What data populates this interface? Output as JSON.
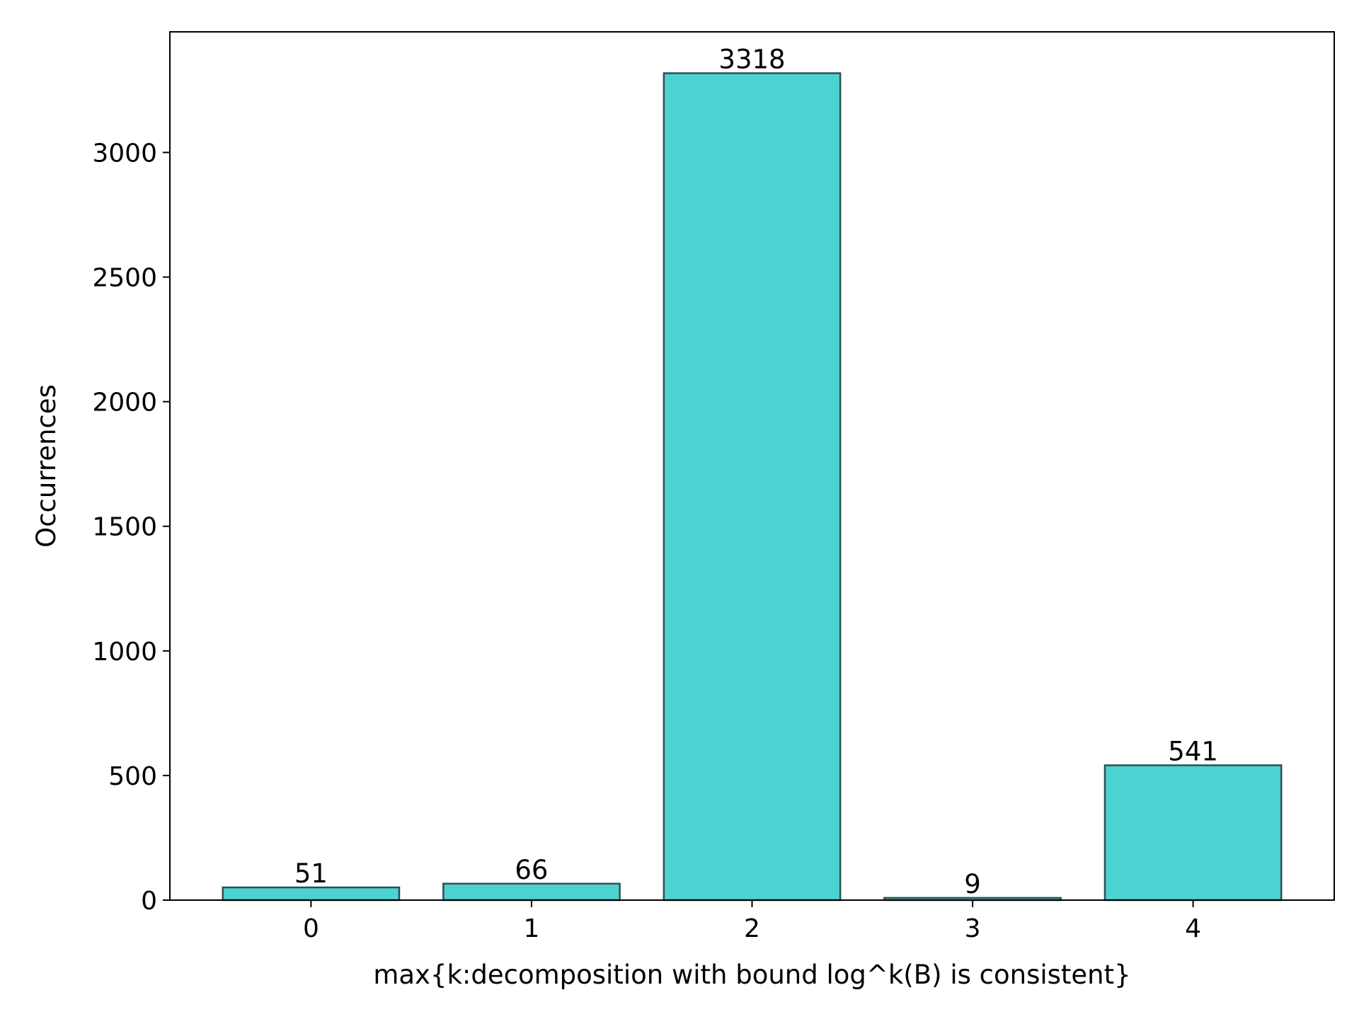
{
  "chart_data": {
    "type": "bar",
    "categories": [
      "0",
      "1",
      "2",
      "3",
      "4"
    ],
    "values": [
      51,
      66,
      3318,
      9,
      541
    ],
    "data_labels": [
      "51",
      "66",
      "3318",
      "9",
      "541"
    ],
    "title": "",
    "xlabel": "max{k:decomposition with bound log^k(B) is consistent}",
    "ylabel": "Occurrences",
    "ylim": [
      0,
      3484
    ],
    "yticks": [
      0,
      500,
      1000,
      1500,
      2000,
      2500,
      3000
    ],
    "ytick_labels": [
      "0",
      "500",
      "1000",
      "1500",
      "2000",
      "2500",
      "3000"
    ],
    "grid": false,
    "legend": "none",
    "colors": {
      "bar_fill": "#4dd2d2",
      "bar_edge": "#2f4f4f",
      "axis": "#000000"
    }
  }
}
